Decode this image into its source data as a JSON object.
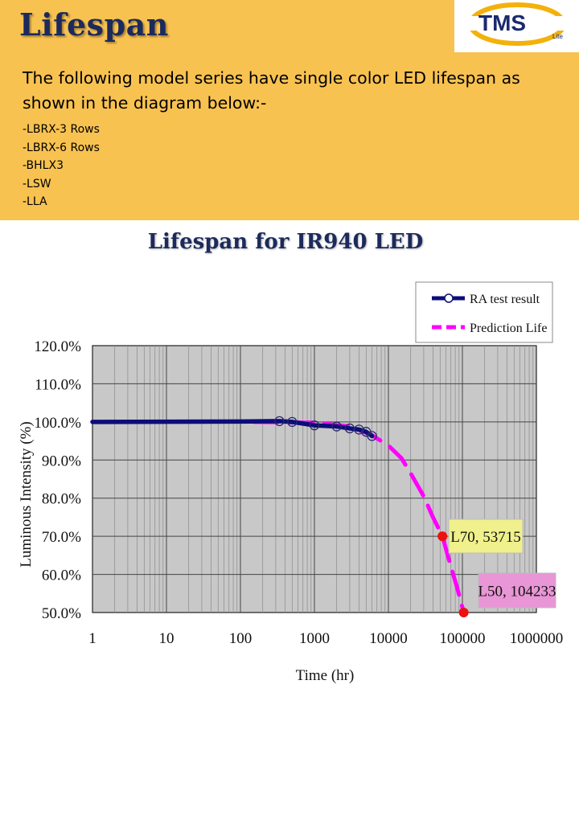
{
  "page": {
    "title": "Lifespan",
    "logo_text": "TMS",
    "logo_subtext": "Lite",
    "intro": "The following model series have single color LED lifespan as shown in the diagram below:-",
    "models": [
      "-LBRX-3 Rows",
      "-LBRX-6 Rows",
      "-BHLX3",
      "-LSW",
      "-LLA"
    ]
  },
  "colors": {
    "header_bg": "#f8c251",
    "title": "#1c2a5c",
    "test_series": "#0c0c7a",
    "prediction_series": "#ff00ff",
    "marker": "#ee1111",
    "plot_bg": "#c8c8c8"
  },
  "chart_data": {
    "type": "line",
    "title": "Lifespan for IR940 LED",
    "xlabel": "Time (hr)",
    "ylabel": "Luminous Intensity (%)",
    "x_scale": "log",
    "xlim": [
      1,
      1000000
    ],
    "ylim": [
      50,
      120
    ],
    "x_ticks": [
      "1",
      "10",
      "100",
      "1000",
      "10000",
      "100000",
      "1000000"
    ],
    "y_ticks": [
      "50.0%",
      "60.0%",
      "70.0%",
      "80.0%",
      "90.0%",
      "100.0%",
      "110.0%",
      "120.0%"
    ],
    "grid": true,
    "legend_position": "top-right",
    "series": [
      {
        "name": "RA test result",
        "style": "solid-with-circles",
        "x": [
          1,
          100,
          336,
          500,
          1000,
          2000,
          3000,
          4000,
          5000,
          6000
        ],
        "y": [
          100,
          100.1,
          100.2,
          100.0,
          99.1,
          98.8,
          98.3,
          98.0,
          97.4,
          96.3
        ],
        "markers_x": [
          336,
          500,
          1000,
          2000,
          3000,
          4000,
          5000,
          6000
        ]
      },
      {
        "name": "Prediction Life",
        "style": "dashed",
        "x": [
          150,
          1000,
          3000,
          6000,
          10000,
          15000,
          20000,
          30000,
          40000,
          53715,
          70000,
          85000,
          104233
        ],
        "y": [
          100,
          99.8,
          98.8,
          96.5,
          93.8,
          90.5,
          86.5,
          80.5,
          75.0,
          70,
          62.0,
          56.5,
          50
        ]
      }
    ],
    "annotations": [
      {
        "label": "L70, 53715",
        "x": 53715,
        "y": 70,
        "bg": "#f0f08c"
      },
      {
        "label": "L50, 104233",
        "x": 104233,
        "y": 50,
        "bg": "#e896d6"
      }
    ]
  }
}
